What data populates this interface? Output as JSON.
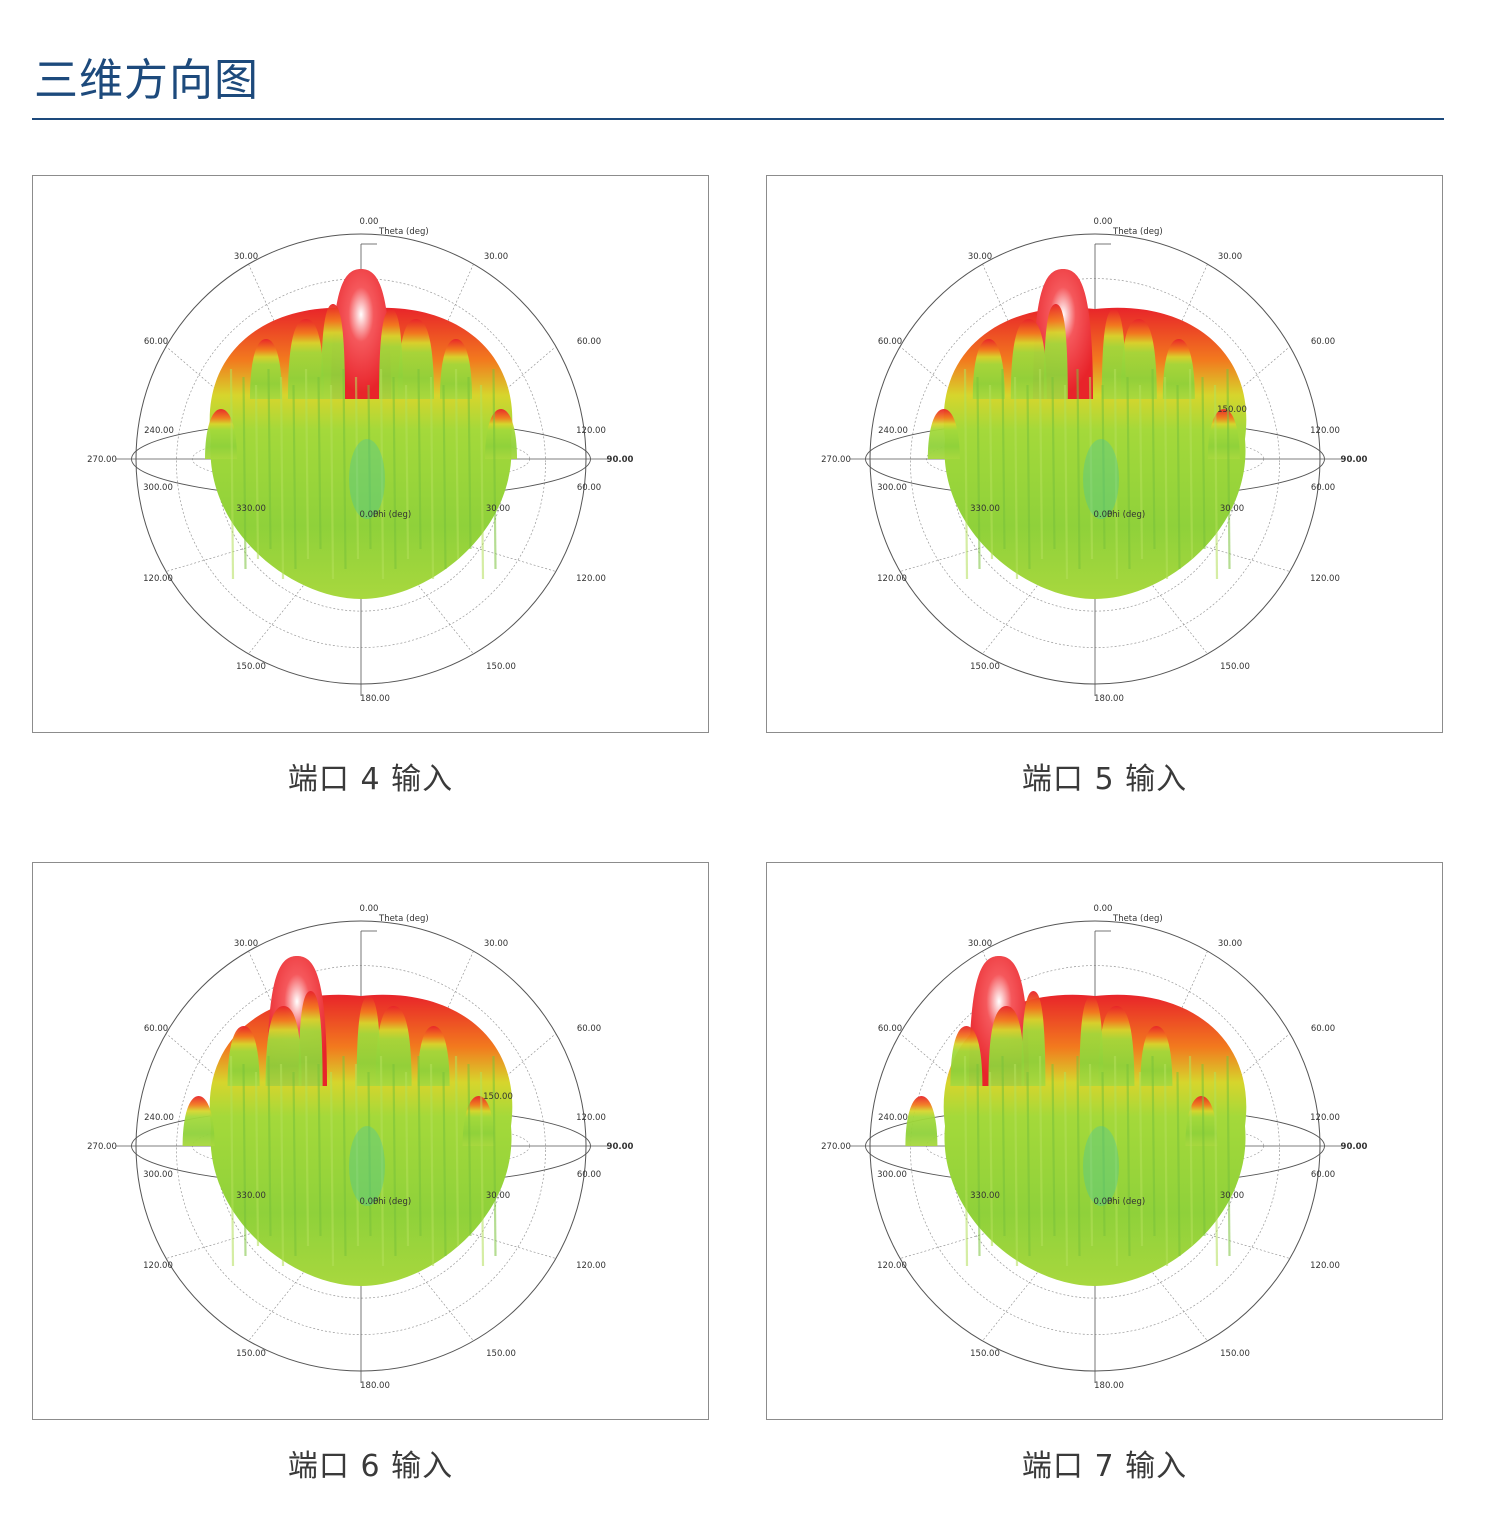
{
  "page": {
    "title": "三维方向图"
  },
  "colors": {
    "accent": "#1d4a7c",
    "peak": "#e8242a",
    "mid": "#f5a21c",
    "low": "#8fd13a",
    "min": "#3ec6a8"
  },
  "chart_data": [
    {
      "type": "polar-3d-radiation-pattern",
      "caption": "端口 4 输入",
      "theta_axis_label": "Theta (deg)",
      "phi_axis_label": "Phi (deg)",
      "theta_ticks": {
        "top": "0.00",
        "upper_left": "30.00",
        "upper_right": "30.00",
        "mid_left": "60.00",
        "mid_right": "60.00",
        "lower_left": "120.00",
        "lower_right": "120.00",
        "bottom_left": "150.00",
        "bottom_right": "150.00",
        "bottom": "180.00",
        "equator_right": "90.00",
        "equator_left": "270.00"
      },
      "phi_ticks": {
        "front": "0.00",
        "front_left": "330.00",
        "front_right": "30.00",
        "left_lower": "300.00",
        "left_upper": "240.00",
        "right_lower": "60.00",
        "right_upper": "120.00"
      },
      "main_lobe_theta_deg": 0
    },
    {
      "type": "polar-3d-radiation-pattern",
      "caption": "端口 5 输入",
      "theta_axis_label": "Theta (deg)",
      "phi_axis_label": "Phi (deg)",
      "theta_ticks": {
        "top": "0.00",
        "upper_left": "30.00",
        "upper_right": "30.00",
        "mid_left": "60.00",
        "mid_right": "60.00",
        "lower_left": "120.00",
        "lower_right": "120.00",
        "bottom_left": "150.00",
        "bottom_right": "150.00",
        "bottom": "180.00",
        "equator_right": "90.00",
        "equator_left": "270.00"
      },
      "phi_ticks": {
        "front": "0.00",
        "front_left": "330.00",
        "front_right": "30.00",
        "left_lower": "300.00",
        "left_upper": "240.00",
        "right_lower": "60.00",
        "right_upper": "120.00",
        "back_right": "150.00"
      },
      "main_lobe_theta_deg": 10
    },
    {
      "type": "polar-3d-radiation-pattern",
      "caption": "端口 6 输入",
      "theta_axis_label": "Theta (deg)",
      "phi_axis_label": "Phi (deg)",
      "theta_ticks": {
        "top": "0.00",
        "upper_left": "30.00",
        "upper_right": "30.00",
        "mid_left": "60.00",
        "mid_right": "60.00",
        "lower_left": "120.00",
        "lower_right": "120.00",
        "bottom_left": "150.00",
        "bottom_right": "150.00",
        "bottom": "180.00",
        "equator_right": "90.00",
        "equator_left": "270.00"
      },
      "phi_ticks": {
        "front": "0.00",
        "front_left": "330.00",
        "front_right": "30.00",
        "left_lower": "300.00",
        "left_upper": "240.00",
        "right_lower": "60.00",
        "right_upper": "120.00",
        "back_right": "150.00"
      },
      "main_lobe_theta_deg": 20
    },
    {
      "type": "polar-3d-radiation-pattern",
      "caption": "端口 7 输入",
      "theta_axis_label": "Theta (deg)",
      "phi_axis_label": "Phi (deg)",
      "theta_ticks": {
        "top": "0.00",
        "upper_left": "30.00",
        "upper_right": "30.00",
        "mid_left": "60.00",
        "mid_right": "60.00",
        "lower_left": "120.00",
        "lower_right": "120.00",
        "bottom_left": "150.00",
        "bottom_right": "150.00",
        "bottom": "180.00",
        "equator_right": "90.00",
        "equator_left": "270.00"
      },
      "phi_ticks": {
        "front": "0.00",
        "front_left": "330.00",
        "front_right": "30.00",
        "left_lower": "300.00",
        "left_upper": "240.00",
        "right_lower": "60.00",
        "right_upper": "120.00"
      },
      "main_lobe_theta_deg": 30
    }
  ]
}
